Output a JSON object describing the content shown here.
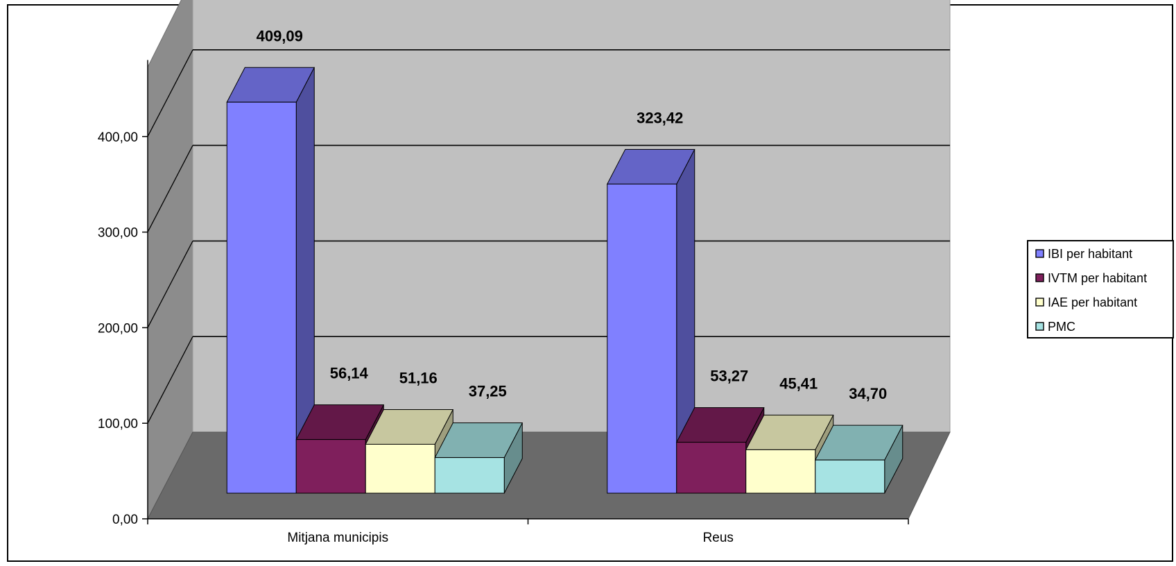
{
  "chart_data": {
    "type": "bar",
    "style": "3d-clustered-column",
    "categories": [
      "Mitjana municipis",
      "Reus"
    ],
    "series": [
      {
        "name": "IBI per habitant",
        "values": [
          409.09,
          323.42
        ],
        "labels": [
          "409,09",
          "323,42"
        ],
        "color": "#8080ff"
      },
      {
        "name": "IVTM per habitant",
        "values": [
          56.14,
          53.27
        ],
        "labels": [
          "56,14",
          "53,27"
        ],
        "color": "#7f1f5c"
      },
      {
        "name": "IAE per habitant",
        "values": [
          51.16,
          45.41
        ],
        "labels": [
          "51,16",
          "45,41"
        ],
        "color": "#ffffcc"
      },
      {
        "name": "PMC",
        "values": [
          37.25,
          34.7
        ],
        "labels": [
          "37,25",
          "34,70"
        ],
        "color": "#a6e3e3"
      }
    ],
    "yticks": [
      "0,00",
      "100,00",
      "200,00",
      "300,00",
      "400,00"
    ],
    "ylim": [
      0,
      400
    ],
    "grid": true,
    "legend_position": "right",
    "colors": {
      "wall": "#c0c0c0",
      "side_wall": "#8c8c8c",
      "floor": "#6a6a6a",
      "gridline": "#000000"
    }
  }
}
